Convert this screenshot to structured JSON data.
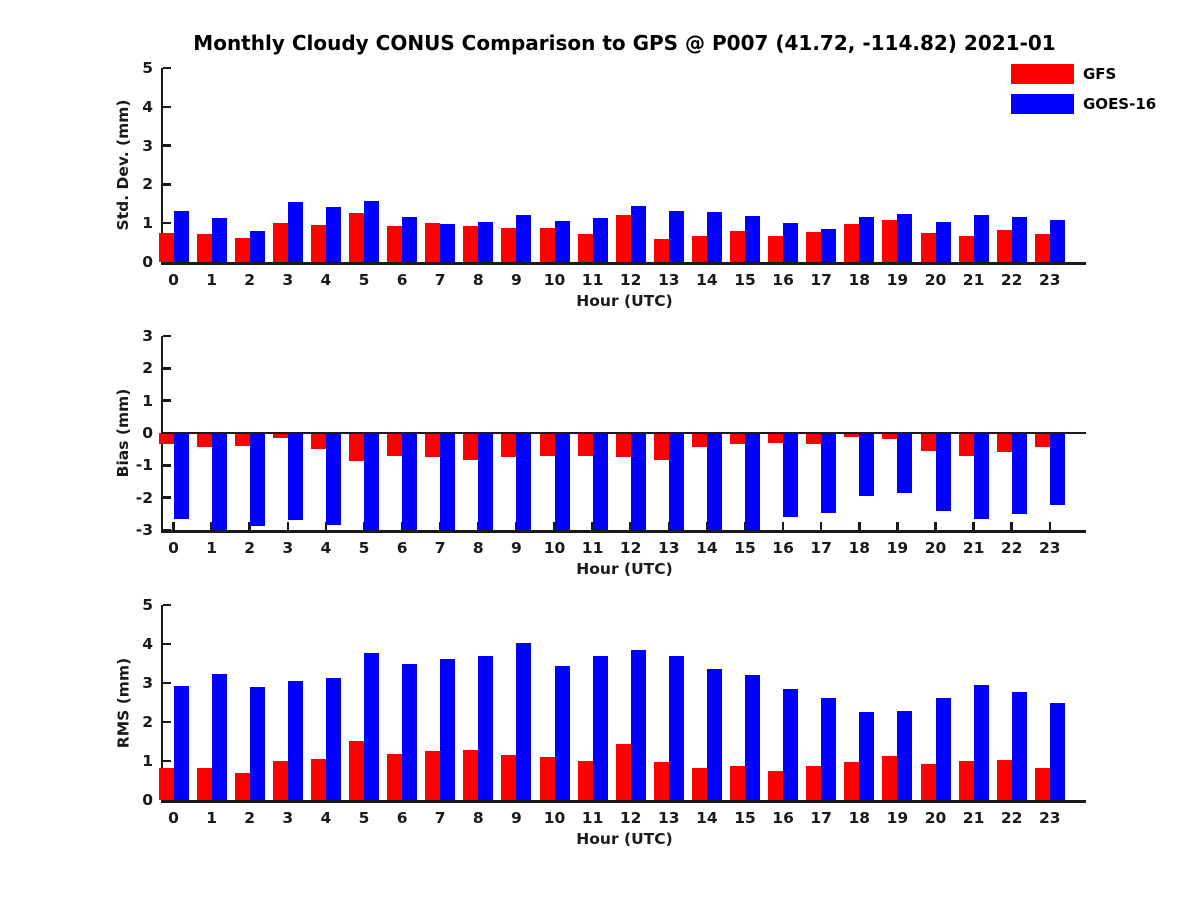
{
  "title": "Monthly Cloudy CONUS Comparison to GPS @ P007 (41.72, -114.82) 2021-01",
  "legend": {
    "items": [
      {
        "label": "GFS",
        "color": "#ff0000"
      },
      {
        "label": "GOES-16",
        "color": "#0000ff"
      }
    ]
  },
  "colors": {
    "gfs": "#ff0000",
    "goes16": "#0000ff",
    "axis": "#1a1a1a"
  },
  "chart_data": [
    {
      "type": "bar",
      "name": "std-dev",
      "ylabel": "Std. Dev. (mm)",
      "xlabel": "Hour (UTC)",
      "ylim": [
        0,
        5
      ],
      "yticks": [
        0,
        1,
        2,
        3,
        4,
        5
      ],
      "grid": false,
      "legend_position": "outside-top-right",
      "categories": [
        "0",
        "1",
        "2",
        "3",
        "4",
        "5",
        "6",
        "7",
        "8",
        "9",
        "10",
        "11",
        "12",
        "13",
        "14",
        "15",
        "16",
        "17",
        "18",
        "19",
        "20",
        "21",
        "22",
        "23"
      ],
      "series": [
        {
          "name": "GFS",
          "color": "#ff0000",
          "values": [
            0.75,
            0.72,
            0.63,
            1.01,
            0.95,
            1.26,
            0.93,
            1.01,
            0.94,
            0.87,
            0.88,
            0.71,
            1.21,
            0.6,
            0.67,
            0.79,
            0.67,
            0.78,
            0.98,
            1.09,
            0.74,
            0.67,
            0.82,
            0.73
          ]
        },
        {
          "name": "GOES-16",
          "color": "#0000ff",
          "values": [
            1.32,
            1.14,
            0.8,
            1.55,
            1.42,
            1.57,
            1.16,
            0.98,
            1.03,
            1.2,
            1.06,
            1.13,
            1.44,
            1.31,
            1.28,
            1.19,
            1.0,
            0.86,
            1.15,
            1.23,
            1.03,
            1.2,
            1.16,
            1.08
          ]
        }
      ]
    },
    {
      "type": "bar",
      "name": "bias",
      "ylabel": "Bias (mm)",
      "xlabel": "Hour (UTC)",
      "ylim": [
        -3,
        3
      ],
      "yticks": [
        -3,
        -2,
        -1,
        0,
        1,
        2,
        3
      ],
      "grid": false,
      "categories": [
        "0",
        "1",
        "2",
        "3",
        "4",
        "5",
        "6",
        "7",
        "8",
        "9",
        "10",
        "11",
        "12",
        "13",
        "14",
        "15",
        "16",
        "17",
        "18",
        "19",
        "20",
        "21",
        "22",
        "23"
      ],
      "series": [
        {
          "name": "GFS",
          "color": "#ff0000",
          "values": [
            -0.34,
            -0.43,
            -0.4,
            -0.15,
            -0.48,
            -0.86,
            -0.72,
            -0.74,
            -0.84,
            -0.75,
            -0.71,
            -0.71,
            -0.73,
            -0.84,
            -0.42,
            -0.34,
            -0.3,
            -0.34,
            -0.12,
            -0.18,
            -0.57,
            -0.72,
            -0.58,
            -0.42
          ]
        },
        {
          "name": "GOES-16",
          "color": "#0000ff",
          "values": [
            -2.66,
            -3.0,
            -2.88,
            -2.68,
            -2.86,
            -3.0,
            -3.0,
            -3.0,
            -3.0,
            -3.0,
            -3.0,
            -3.0,
            -3.0,
            -3.0,
            -3.0,
            -3.0,
            -2.61,
            -2.46,
            -1.95,
            -1.85,
            -2.41,
            -2.66,
            -2.52,
            -2.23
          ]
        }
      ]
    },
    {
      "type": "bar",
      "name": "rms",
      "ylabel": "RMS (mm)",
      "xlabel": "Hour (UTC)",
      "ylim": [
        0,
        5
      ],
      "yticks": [
        0,
        1,
        2,
        3,
        4,
        5
      ],
      "grid": false,
      "categories": [
        "0",
        "1",
        "2",
        "3",
        "4",
        "5",
        "6",
        "7",
        "8",
        "9",
        "10",
        "11",
        "12",
        "13",
        "14",
        "15",
        "16",
        "17",
        "18",
        "19",
        "20",
        "21",
        "22",
        "23"
      ],
      "series": [
        {
          "name": "GFS",
          "color": "#ff0000",
          "values": [
            0.81,
            0.81,
            0.7,
            1.01,
            1.05,
            1.51,
            1.17,
            1.26,
            1.28,
            1.15,
            1.11,
            1.01,
            1.44,
            0.97,
            0.81,
            0.88,
            0.75,
            0.87,
            0.97,
            1.14,
            0.92,
            1.0,
            1.03,
            0.83
          ]
        },
        {
          "name": "GOES-16",
          "color": "#0000ff",
          "values": [
            2.93,
            3.22,
            2.89,
            3.06,
            3.14,
            3.76,
            3.5,
            3.62,
            3.69,
            4.02,
            3.44,
            3.68,
            3.85,
            3.68,
            3.35,
            3.21,
            2.84,
            2.61,
            2.26,
            2.28,
            2.62,
            2.94,
            2.77,
            2.48
          ]
        }
      ]
    }
  ]
}
